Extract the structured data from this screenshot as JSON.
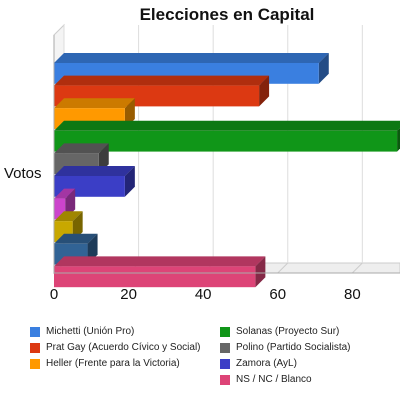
{
  "chart_data": {
    "type": "bar",
    "orientation": "horizontal",
    "title": "Elecciones en Capital",
    "ylabel": "Votos",
    "xlabel": "",
    "categories": [
      "Votos"
    ],
    "xlim": [
      0,
      90
    ],
    "xticks": [
      "0",
      "20",
      "40",
      "60",
      "80"
    ],
    "grid": true,
    "legend_position": "bottom",
    "series": [
      {
        "name": "Michetti (Unión Pro)",
        "value": 71,
        "color": "#3a7fe0"
      },
      {
        "name": "Prat Gay (Acuerdo Cívico y Social)",
        "value": 55,
        "color": "#dc3912"
      },
      {
        "name": "Heller (Frente para la Victoria)",
        "value": 19,
        "color": "#ff9900"
      },
      {
        "name": "Solanas (Proyecto Sur)",
        "value": 92,
        "color": "#109618"
      },
      {
        "name": "Polino (Partido Socialista)",
        "value": 12,
        "color": "#666666"
      },
      {
        "name": "Zamora (AyL)",
        "value": 19,
        "color": "#3b3ec6"
      },
      {
        "name": "",
        "value": 3,
        "color": "#cc44cc"
      },
      {
        "name": "",
        "value": 5,
        "color": "#c8a800"
      },
      {
        "name": "",
        "value": 9,
        "color": "#316395"
      },
      {
        "name": "NS / NC / Blanco",
        "value": 54,
        "color": "#dd4477"
      }
    ]
  }
}
